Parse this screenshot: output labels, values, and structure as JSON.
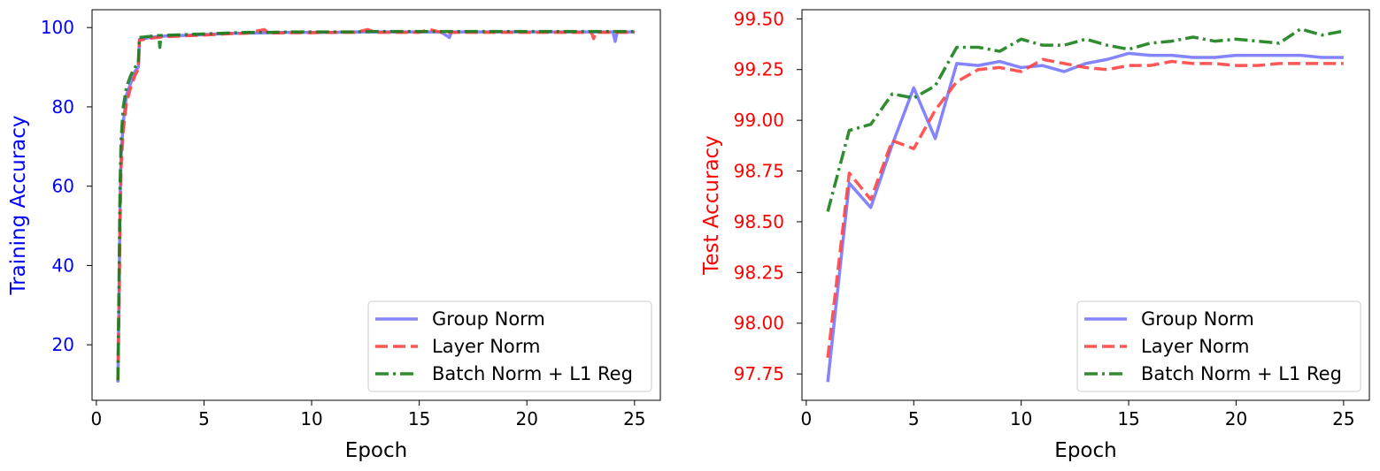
{
  "chart_data": [
    {
      "type": "line",
      "xlabel": "Epoch",
      "ylabel": "Training Accuracy",
      "ylabel_color": "#0000ff",
      "tick_color": "#0000ff",
      "xlim": [
        -0.2,
        26.2
      ],
      "ylim": [
        6.0,
        104.5
      ],
      "xticks": [
        0,
        5,
        10,
        15,
        20,
        25
      ],
      "yticks": [
        20,
        40,
        60,
        80,
        100
      ],
      "grid": false,
      "legend_position": "lower-right",
      "series": [
        {
          "name": "Group Norm",
          "color": "#7777ff",
          "style": "solid",
          "points": [
            [
              1.0,
              10.5
            ],
            [
              1.05,
              30
            ],
            [
              1.1,
              55
            ],
            [
              1.15,
              68
            ],
            [
              1.25,
              76
            ],
            [
              1.4,
              83
            ],
            [
              1.6,
              86
            ],
            [
              1.8,
              89
            ],
            [
              1.95,
              90
            ],
            [
              2.0,
              97.0
            ],
            [
              2.5,
              97.5
            ],
            [
              3.0,
              97.8
            ],
            [
              4.0,
              98.0
            ],
            [
              5.0,
              98.2
            ],
            [
              6.0,
              98.5
            ],
            [
              7.0,
              98.6
            ],
            [
              8.0,
              98.7
            ],
            [
              9.0,
              98.8
            ],
            [
              10.0,
              98.8
            ],
            [
              11.0,
              98.8
            ],
            [
              12.0,
              98.9
            ],
            [
              13.0,
              98.9
            ],
            [
              14.0,
              98.9
            ],
            [
              15.0,
              98.9
            ],
            [
              16.0,
              98.9
            ],
            [
              16.4,
              97.5
            ],
            [
              16.5,
              98.9
            ],
            [
              17.0,
              98.9
            ],
            [
              18.0,
              98.9
            ],
            [
              19.0,
              98.9
            ],
            [
              20.0,
              98.9
            ],
            [
              21.0,
              98.9
            ],
            [
              22.0,
              98.9
            ],
            [
              23.0,
              98.9
            ],
            [
              24.0,
              98.9
            ],
            [
              24.1,
              96.5
            ],
            [
              24.2,
              98.9
            ],
            [
              25.0,
              98.9
            ]
          ]
        },
        {
          "name": "Layer Norm",
          "color": "#ff4444",
          "style": "dashed",
          "points": [
            [
              1.0,
              11.0
            ],
            [
              1.05,
              28
            ],
            [
              1.1,
              50
            ],
            [
              1.15,
              65
            ],
            [
              1.25,
              74
            ],
            [
              1.4,
              81
            ],
            [
              1.6,
              85
            ],
            [
              1.8,
              88
            ],
            [
              1.95,
              89.5
            ],
            [
              2.0,
              96.8
            ],
            [
              2.5,
              97.3
            ],
            [
              3.0,
              97.6
            ],
            [
              4.0,
              97.9
            ],
            [
              5.0,
              98.1
            ],
            [
              6.0,
              98.4
            ],
            [
              7.0,
              98.6
            ],
            [
              7.8,
              99.5
            ],
            [
              8.0,
              98.6
            ],
            [
              9.0,
              98.7
            ],
            [
              10.0,
              98.7
            ],
            [
              11.0,
              98.8
            ],
            [
              12.0,
              98.8
            ],
            [
              12.6,
              99.5
            ],
            [
              13.0,
              98.8
            ],
            [
              14.0,
              98.8
            ],
            [
              15.0,
              98.8
            ],
            [
              15.5,
              99.5
            ],
            [
              16.0,
              98.8
            ],
            [
              17.0,
              98.8
            ],
            [
              18.0,
              98.8
            ],
            [
              19.0,
              98.8
            ],
            [
              20.0,
              98.8
            ],
            [
              21.0,
              98.8
            ],
            [
              22.0,
              98.8
            ],
            [
              23.0,
              98.8
            ],
            [
              23.1,
              97.2
            ],
            [
              23.2,
              98.8
            ],
            [
              24.0,
              98.8
            ],
            [
              25.0,
              98.8
            ]
          ]
        },
        {
          "name": "Batch Norm + L1 Reg",
          "color": "#1a801a",
          "style": "dashdot",
          "points": [
            [
              1.0,
              11.0
            ],
            [
              1.05,
              35
            ],
            [
              1.1,
              60
            ],
            [
              1.15,
              72
            ],
            [
              1.25,
              80
            ],
            [
              1.4,
              85
            ],
            [
              1.6,
              88
            ],
            [
              1.8,
              90
            ],
            [
              1.95,
              91
            ],
            [
              2.0,
              97.5
            ],
            [
              2.5,
              97.8
            ],
            [
              2.9,
              98.0
            ],
            [
              2.95,
              95.0
            ],
            [
              3.0,
              98.0
            ],
            [
              4.0,
              98.2
            ],
            [
              5.0,
              98.4
            ],
            [
              6.0,
              98.6
            ],
            [
              7.0,
              98.8
            ],
            [
              8.0,
              98.8
            ],
            [
              9.0,
              98.9
            ],
            [
              10.0,
              98.9
            ],
            [
              11.0,
              98.9
            ],
            [
              12.0,
              98.9
            ],
            [
              13.0,
              99.0
            ],
            [
              14.0,
              99.0
            ],
            [
              15.0,
              99.0
            ],
            [
              16.0,
              99.0
            ],
            [
              17.0,
              99.0
            ],
            [
              18.0,
              99.0
            ],
            [
              19.0,
              99.0
            ],
            [
              20.0,
              99.0
            ],
            [
              21.0,
              99.0
            ],
            [
              22.0,
              99.0
            ],
            [
              23.0,
              99.0
            ],
            [
              24.0,
              99.0
            ],
            [
              25.0,
              99.0
            ]
          ]
        }
      ]
    },
    {
      "type": "line",
      "xlabel": "Epoch",
      "ylabel": "Test Accuracy",
      "ylabel_color": "#ff0000",
      "tick_color": "#ff0000",
      "xlim": [
        -0.2,
        26.2
      ],
      "ylim": [
        97.62,
        99.545
      ],
      "xticks": [
        0,
        5,
        10,
        15,
        20,
        25
      ],
      "yticks": [
        97.75,
        98.0,
        98.25,
        98.5,
        98.75,
        99.0,
        99.25,
        99.5
      ],
      "ytick_labels": [
        "97.75",
        "98.00",
        "98.25",
        "98.50",
        "98.75",
        "99.00",
        "99.25",
        "99.50"
      ],
      "grid": false,
      "legend_position": "lower-right",
      "series": [
        {
          "name": "Group Norm",
          "color": "#7777ff",
          "style": "solid",
          "x": [
            1,
            2,
            3,
            4,
            5,
            6,
            7,
            8,
            9,
            10,
            11,
            12,
            13,
            14,
            15,
            16,
            17,
            18,
            19,
            20,
            21,
            22,
            23,
            24,
            25
          ],
          "values": [
            97.71,
            98.69,
            98.57,
            98.88,
            99.16,
            98.91,
            99.28,
            99.27,
            99.29,
            99.26,
            99.27,
            99.24,
            99.28,
            99.3,
            99.33,
            99.32,
            99.32,
            99.31,
            99.31,
            99.32,
            99.32,
            99.32,
            99.32,
            99.31,
            99.31
          ]
        },
        {
          "name": "Layer Norm",
          "color": "#ff4444",
          "style": "dashed",
          "x": [
            1,
            2,
            3,
            4,
            5,
            6,
            7,
            8,
            9,
            10,
            11,
            12,
            13,
            14,
            15,
            16,
            17,
            18,
            19,
            20,
            21,
            22,
            23,
            24,
            25
          ],
          "values": [
            97.83,
            98.74,
            98.61,
            98.9,
            98.86,
            99.05,
            99.19,
            99.25,
            99.26,
            99.24,
            99.3,
            99.28,
            99.26,
            99.25,
            99.27,
            99.27,
            99.29,
            99.28,
            99.28,
            99.27,
            99.27,
            99.28,
            99.28,
            99.28,
            99.28
          ]
        },
        {
          "name": "Batch Norm + L1 Reg",
          "color": "#1a801a",
          "style": "dashdot",
          "x": [
            1,
            2,
            3,
            4,
            5,
            6,
            7,
            8,
            9,
            10,
            11,
            12,
            13,
            14,
            15,
            16,
            17,
            18,
            19,
            20,
            21,
            22,
            23,
            24,
            25
          ],
          "values": [
            98.55,
            98.95,
            98.98,
            99.13,
            99.11,
            99.17,
            99.36,
            99.36,
            99.34,
            99.4,
            99.37,
            99.37,
            99.4,
            99.37,
            99.35,
            99.38,
            99.39,
            99.41,
            99.39,
            99.4,
            99.39,
            99.38,
            99.45,
            99.42,
            99.44
          ]
        }
      ]
    }
  ]
}
